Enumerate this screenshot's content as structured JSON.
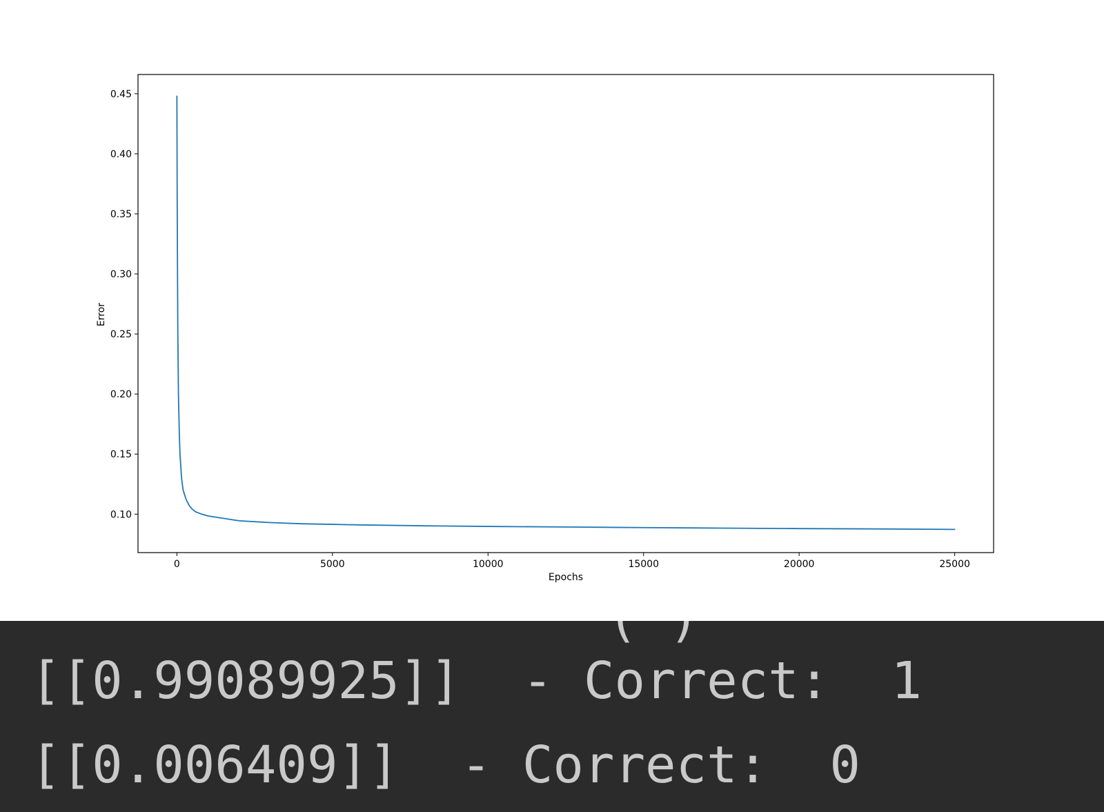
{
  "chart_data": {
    "type": "line",
    "xlabel": "Epochs",
    "ylabel": "Error",
    "xlim": [
      -1250,
      26250
    ],
    "ylim": [
      0.068,
      0.466
    ],
    "x_ticks": [
      0,
      5000,
      10000,
      15000,
      20000,
      25000
    ],
    "x_tick_labels": [
      "0",
      "5000",
      "10000",
      "15000",
      "20000",
      "25000"
    ],
    "y_ticks": [
      0.1,
      0.15,
      0.2,
      0.25,
      0.3,
      0.35,
      0.4,
      0.45
    ],
    "y_tick_labels": [
      "0.10",
      "0.15",
      "0.20",
      "0.25",
      "0.30",
      "0.35",
      "0.40",
      "0.45"
    ],
    "grid": false,
    "line_color": "#1f77b4",
    "series": [
      {
        "x": [
          0,
          10,
          20,
          30,
          50,
          75,
          100,
          150,
          200,
          300,
          400,
          500,
          600,
          800,
          1000,
          1500,
          2000,
          3000,
          4000,
          5000,
          6000,
          8000,
          10000,
          12500,
          15000,
          17500,
          20000,
          22500,
          25000
        ],
        "values": [
          0.448,
          0.36,
          0.3,
          0.25,
          0.2,
          0.17,
          0.15,
          0.13,
          0.12,
          0.112,
          0.107,
          0.104,
          0.102,
          0.1,
          0.0985,
          0.0965,
          0.0945,
          0.093,
          0.092,
          0.0915,
          0.091,
          0.0903,
          0.0898,
          0.0893,
          0.0888,
          0.0884,
          0.088,
          0.0877,
          0.0873
        ]
      }
    ]
  },
  "console": {
    "partial_line": "( )",
    "line1": "[[0.99089925]]  - Correct:  1",
    "line2": "[[0.006409]]  - Correct:  0"
  }
}
